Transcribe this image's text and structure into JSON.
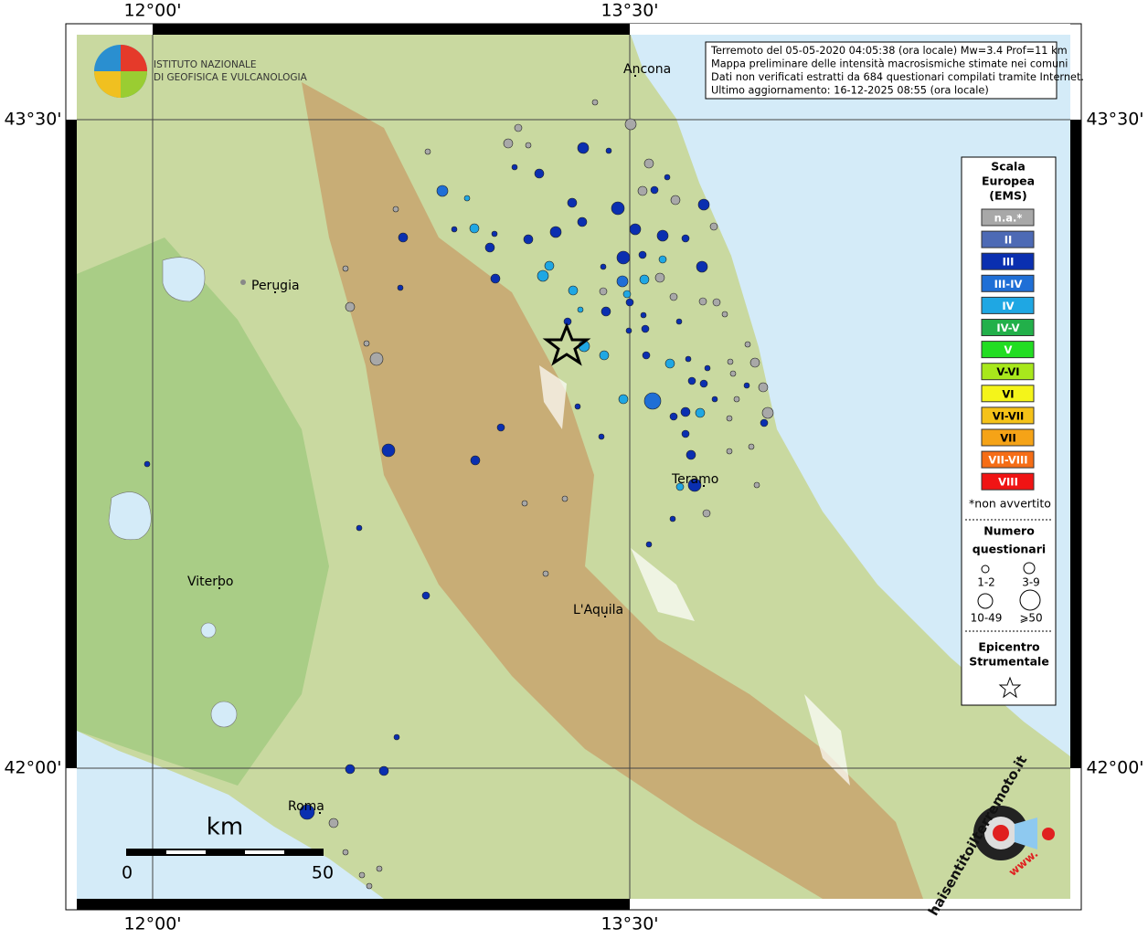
{
  "axes": {
    "top_labels": [
      "12°00'",
      "13°30'"
    ],
    "bottom_labels": [
      "12°00'",
      "13°30'"
    ],
    "left_labels": [
      "43°30'",
      "42°00'"
    ],
    "right_labels": [
      "43°30'",
      "42°00'"
    ]
  },
  "logo": {
    "line1": "ISTITUTO NAZIONALE",
    "line2": "DI GEOFISICA E VULCANOLOGIA"
  },
  "info_box": [
    "Terremoto del 05-05-2020 04:05:38 (ora locale) Mw=3.4 Prof=11 km",
    "Mappa preliminare delle intensità macrosismiche stimate nei comuni",
    "Dati non verificati estratti da 684 questionari compilati tramite Internet.",
    "Ultimo aggiornamento: 16-12-2025 08:55 (ora locale)"
  ],
  "places": [
    "Ancona",
    "Perugia",
    "Teramo",
    "Viterbo",
    "L'Aquila",
    "Roma"
  ],
  "legend": {
    "title": [
      "Scala",
      "Europea",
      "(EMS)"
    ],
    "classes": [
      {
        "label": "n.a.*",
        "color": "#a8a8a8"
      },
      {
        "label": "II",
        "color": "#4d6ab5"
      },
      {
        "label": "III",
        "color": "#0a2fb0"
      },
      {
        "label": "III-IV",
        "color": "#1f6fd6"
      },
      {
        "label": "IV",
        "color": "#1fa7e3"
      },
      {
        "label": "IV-V",
        "color": "#22b04a"
      },
      {
        "label": "V",
        "color": "#22dd22"
      },
      {
        "label": "V-VI",
        "color": "#a8e81c"
      },
      {
        "label": "VI",
        "color": "#f4f41a"
      },
      {
        "label": "VI-VII",
        "color": "#f5c218"
      },
      {
        "label": "VII",
        "color": "#f5a317"
      },
      {
        "label": "VII-VIII",
        "color": "#f56d16"
      },
      {
        "label": "VIII",
        "color": "#f01414"
      }
    ],
    "note": "*non avvertito",
    "size_title": [
      "Numero",
      "questionari"
    ],
    "sizes": [
      "1-2",
      "3-9",
      "10-49",
      "⩾50"
    ],
    "epicenter_title": [
      "Epicentro",
      "Strumentale"
    ]
  },
  "scale_bar": {
    "unit": "km",
    "labels": [
      "0",
      "50"
    ]
  },
  "badge": {
    "site": "haisentitoilterremoto.it",
    "prefix": "www."
  }
}
